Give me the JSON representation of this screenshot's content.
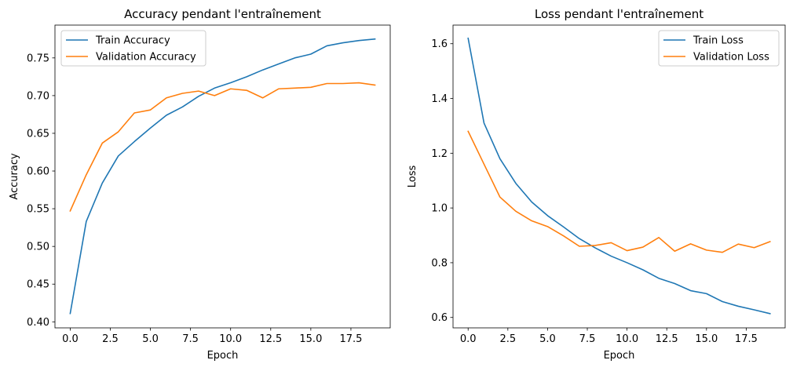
{
  "chart_data": [
    {
      "type": "line",
      "title": "Accuracy pendant l'entraînement",
      "xlabel": "Epoch",
      "ylabel": "Accuracy",
      "xlim": [
        -0.95,
        19.95
      ],
      "ylim": [
        0.392,
        0.7935
      ],
      "x_ticks": [
        0.0,
        2.5,
        5.0,
        7.5,
        10.0,
        12.5,
        15.0,
        17.5
      ],
      "x_tick_labels": [
        "0.0",
        "2.5",
        "5.0",
        "7.5",
        "10.0",
        "12.5",
        "15.0",
        "17.5"
      ],
      "y_ticks": [
        0.4,
        0.45,
        0.5,
        0.55,
        0.6,
        0.65,
        0.7,
        0.75
      ],
      "y_tick_labels": [
        "0.40",
        "0.45",
        "0.50",
        "0.55",
        "0.60",
        "0.65",
        "0.70",
        "0.75"
      ],
      "x": [
        0,
        1,
        2,
        3,
        4,
        5,
        6,
        7,
        8,
        9,
        10,
        11,
        12,
        13,
        14,
        15,
        16,
        17,
        18,
        19
      ],
      "series": [
        {
          "name": "Train Accuracy",
          "color": "#1f77b4",
          "values": [
            0.411,
            0.533,
            0.584,
            0.62,
            0.639,
            0.657,
            0.674,
            0.685,
            0.699,
            0.71,
            0.717,
            0.725,
            0.734,
            0.742,
            0.75,
            0.755,
            0.766,
            0.77,
            0.773,
            0.775
          ]
        },
        {
          "name": "Validation Accuracy",
          "color": "#ff7f0e",
          "values": [
            0.547,
            0.595,
            0.637,
            0.652,
            0.677,
            0.681,
            0.697,
            0.703,
            0.706,
            0.7,
            0.709,
            0.707,
            0.697,
            0.709,
            0.71,
            0.711,
            0.716,
            0.716,
            0.717,
            0.714
          ]
        }
      ],
      "legend": "top-left",
      "grid": false
    },
    {
      "type": "line",
      "title": "Loss pendant l'entraînement",
      "xlabel": "Epoch",
      "ylabel": "Loss",
      "xlim": [
        -0.95,
        19.95
      ],
      "ylim": [
        0.562,
        1.668
      ],
      "x_ticks": [
        0.0,
        2.5,
        5.0,
        7.5,
        10.0,
        12.5,
        15.0,
        17.5
      ],
      "x_tick_labels": [
        "0.0",
        "2.5",
        "5.0",
        "7.5",
        "10.0",
        "12.5",
        "15.0",
        "17.5"
      ],
      "y_ticks": [
        0.6,
        0.8,
        1.0,
        1.2,
        1.4,
        1.6
      ],
      "y_tick_labels": [
        "0.6",
        "0.8",
        "1.0",
        "1.2",
        "1.4",
        "1.6"
      ],
      "x": [
        0,
        1,
        2,
        3,
        4,
        5,
        6,
        7,
        8,
        9,
        10,
        11,
        12,
        13,
        14,
        15,
        16,
        17,
        18,
        19
      ],
      "series": [
        {
          "name": "Train Loss",
          "color": "#1f77b4",
          "values": [
            1.62,
            1.31,
            1.18,
            1.09,
            1.022,
            0.972,
            0.931,
            0.888,
            0.854,
            0.824,
            0.8,
            0.774,
            0.743,
            0.724,
            0.698,
            0.687,
            0.658,
            0.641,
            0.628,
            0.614
          ]
        },
        {
          "name": "Validation Loss",
          "color": "#ff7f0e",
          "values": [
            1.28,
            1.16,
            1.04,
            0.988,
            0.953,
            0.932,
            0.898,
            0.86,
            0.863,
            0.873,
            0.844,
            0.857,
            0.892,
            0.842,
            0.869,
            0.846,
            0.838,
            0.868,
            0.855,
            0.877
          ]
        }
      ],
      "legend": "top-right",
      "grid": false
    }
  ]
}
